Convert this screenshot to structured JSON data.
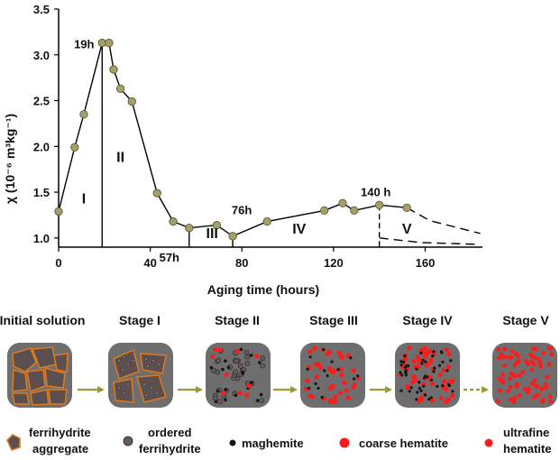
{
  "chart_data": {
    "type": "line",
    "xlabel": "Aging time (hours)",
    "ylabel": "χ (10⁻⁶ m³kg⁻¹)",
    "xlim": [
      0,
      185
    ],
    "ylim": [
      0.9,
      3.5
    ],
    "xticks": [
      "0",
      "40",
      "80",
      "120",
      "160"
    ],
    "xtick_values": [
      0,
      40,
      80,
      120,
      160
    ],
    "yticks": [
      "1.0",
      "1.5",
      "2.0",
      "2.5",
      "3.0",
      "3.5"
    ],
    "ytick_values": [
      1.0,
      1.5,
      2.0,
      2.5,
      3.0,
      3.5
    ],
    "series": [
      {
        "name": "chi",
        "x": [
          0,
          7,
          11,
          19,
          22,
          24,
          27,
          32,
          43,
          50,
          57,
          69,
          76,
          91,
          116,
          124,
          129,
          140,
          152
        ],
        "y": [
          1.29,
          1.99,
          2.35,
          3.13,
          3.13,
          2.84,
          2.63,
          2.49,
          1.49,
          1.18,
          1.11,
          1.14,
          1.02,
          1.18,
          1.3,
          1.38,
          1.3,
          1.36,
          1.33
        ]
      }
    ],
    "extrapolation": {
      "upper": [
        [
          152,
          1.33
        ],
        [
          162,
          1.19
        ],
        [
          184,
          1.05
        ]
      ],
      "lower": [
        [
          140,
          1.0
        ],
        [
          158,
          0.95
        ],
        [
          184,
          0.93
        ]
      ]
    },
    "stage_boundaries": [
      19,
      57,
      76,
      140
    ],
    "annotations": [
      {
        "text": "19h",
        "x": 19,
        "y": 3.13
      },
      {
        "text": "57h",
        "x": 57,
        "y": 1.0
      },
      {
        "text": "76h",
        "x": 76,
        "y": 1.12
      },
      {
        "text": "140 h",
        "x": 140,
        "y": 1.36
      }
    ],
    "regions": [
      {
        "text": "I",
        "x": 11,
        "y": 1.38
      },
      {
        "text": "II",
        "x": 27,
        "y": 1.83
      },
      {
        "text": "III",
        "x": 67,
        "y": 1.0
      },
      {
        "text": "IV",
        "x": 105,
        "y": 1.05
      },
      {
        "text": "V",
        "x": 152,
        "y": 1.05
      }
    ]
  },
  "stages": {
    "labels": [
      "Initial solution",
      "Stage I",
      "Stage II",
      "Stage III",
      "Stage IV",
      "Stage V"
    ]
  },
  "legend": {
    "items": [
      {
        "line1": "ferrihydrite",
        "line2": "aggregate"
      },
      {
        "line1": "ordered",
        "line2": "ferrihydrite"
      },
      {
        "line1": "maghemite",
        "line2": ""
      },
      {
        "line1": "coarse hematite",
        "line2": ""
      },
      {
        "line1": "ultrafine",
        "line2": "hematite"
      }
    ]
  },
  "colors": {
    "marker_fill": "#a5a067",
    "marker_stroke": "#5a5a3a",
    "panel_bg": "#6e6e6e",
    "aggregate_fill": "#5b4f4f",
    "aggregate_stroke": "#e07a1c",
    "ordered_fill": "#6a5a5a",
    "maghemite": "#151515",
    "hematite": "#ff1a1a",
    "arrow": "#9a9a3a"
  }
}
